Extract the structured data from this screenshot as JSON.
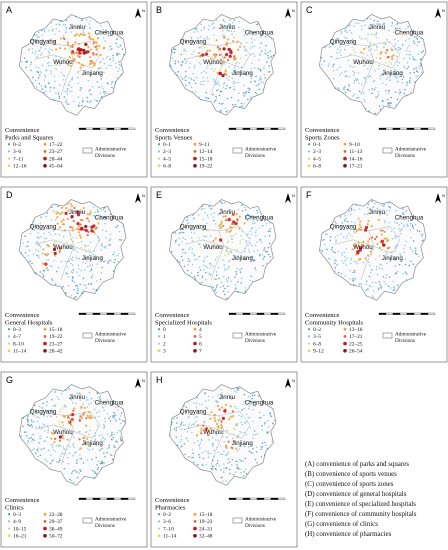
{
  "colors": {
    "c1": "#4f94b8",
    "c2": "#86c2de",
    "c3": "#c8d58a",
    "c4": "#f4d35a",
    "c5": "#f1a23a",
    "c6": "#e8603a",
    "c7": "#c8181e",
    "c8": "#8e0f14"
  },
  "districts": [
    "Jinniu",
    "Chenghua",
    "Qingyang",
    "Wuhou",
    "Jinjiang"
  ],
  "administrative_label": [
    "Administrative",
    "Divisions"
  ],
  "north_label": "N",
  "panels": [
    {
      "letter": "A",
      "title": [
        "Convenience",
        "Parks and Squares"
      ],
      "classes": [
        "0–2",
        "3–6",
        "7–11",
        "12–16",
        "17–22",
        "23–27",
        "28–44",
        "45–64"
      ],
      "hotspots": [
        [
          0.58,
          0.36,
          0.16
        ],
        [
          0.4,
          0.3,
          0.07
        ],
        [
          0.46,
          0.52,
          0.06
        ]
      ]
    },
    {
      "letter": "B",
      "title": [
        "Convenience",
        "Sports Venues"
      ],
      "classes": [
        "0–1",
        "2–3",
        "4–5",
        "6–8",
        "9–11",
        "12–14",
        "15–18",
        "19–22"
      ],
      "hotspots": [
        [
          0.52,
          0.36,
          0.12
        ],
        [
          0.36,
          0.4,
          0.06
        ],
        [
          0.48,
          0.58,
          0.05
        ]
      ]
    },
    {
      "letter": "C",
      "title": [
        "Convenience",
        "Sports Zones"
      ],
      "classes": [
        "0–1",
        "2–3",
        "4–5",
        "6–8",
        "9–10",
        "11–13",
        "14–16",
        "17–21"
      ],
      "hotspots": [
        [
          0.6,
          0.4,
          0.06
        ],
        [
          0.4,
          0.34,
          0.04
        ]
      ]
    },
    {
      "letter": "D",
      "title": [
        "Convenience",
        "General Hospitals"
      ],
      "classes": [
        "0–3",
        "4–7",
        "8–10",
        "11–14",
        "15–18",
        "19–22",
        "23–27",
        "28–42"
      ],
      "hotspots": [
        [
          0.5,
          0.2,
          0.14
        ],
        [
          0.6,
          0.3,
          0.1
        ],
        [
          0.34,
          0.5,
          0.08
        ],
        [
          0.26,
          0.62,
          0.05
        ]
      ]
    },
    {
      "letter": "E",
      "title": [
        "Convenience",
        "Specialized Hospitals"
      ],
      "classes": [
        "0",
        "1",
        "2",
        "3",
        "4",
        "5",
        "6",
        "7"
      ],
      "hotspots": [
        [
          0.56,
          0.24,
          0.1
        ],
        [
          0.46,
          0.42,
          0.05
        ]
      ]
    },
    {
      "letter": "F",
      "title": [
        "Convenience",
        "Community Hospitals"
      ],
      "classes": [
        "0–2",
        "3–5",
        "6–8",
        "9–12",
        "13–16",
        "17–21",
        "22–25",
        "26–54"
      ],
      "hotspots": [
        [
          0.48,
          0.32,
          0.12
        ],
        [
          0.4,
          0.5,
          0.08
        ],
        [
          0.58,
          0.44,
          0.06
        ]
      ]
    },
    {
      "letter": "G",
      "title": [
        "Convenience",
        "Clinics"
      ],
      "classes": [
        "0–3",
        "4–9",
        "10–15",
        "16–21",
        "22–28",
        "29–37",
        "38–49",
        "50–72"
      ],
      "hotspots": [
        [
          0.52,
          0.34,
          0.12
        ],
        [
          0.38,
          0.5,
          0.08
        ],
        [
          0.56,
          0.56,
          0.06
        ]
      ]
    },
    {
      "letter": "H",
      "title": [
        "Convenience",
        "Pharmacies"
      ],
      "classes": [
        "0–2",
        "3–6",
        "7–10",
        "11–14",
        "15–18",
        "19–23",
        "24–31",
        "32–48"
      ],
      "hotspots": [
        [
          0.5,
          0.32,
          0.11
        ],
        [
          0.34,
          0.46,
          0.07
        ],
        [
          0.56,
          0.58,
          0.05
        ]
      ]
    }
  ],
  "caption": [
    "(A) convenience of parks and squares",
    "(B) convenience of sports venues",
    "(C) convenience of  sports zones",
    "(D) convenience of general hospitals",
    "(E) convenience of specialized hospitals",
    "(F) convenience of community hospitals",
    "(G) convenience of clinics",
    "(H) convenience of pharmacies"
  ]
}
